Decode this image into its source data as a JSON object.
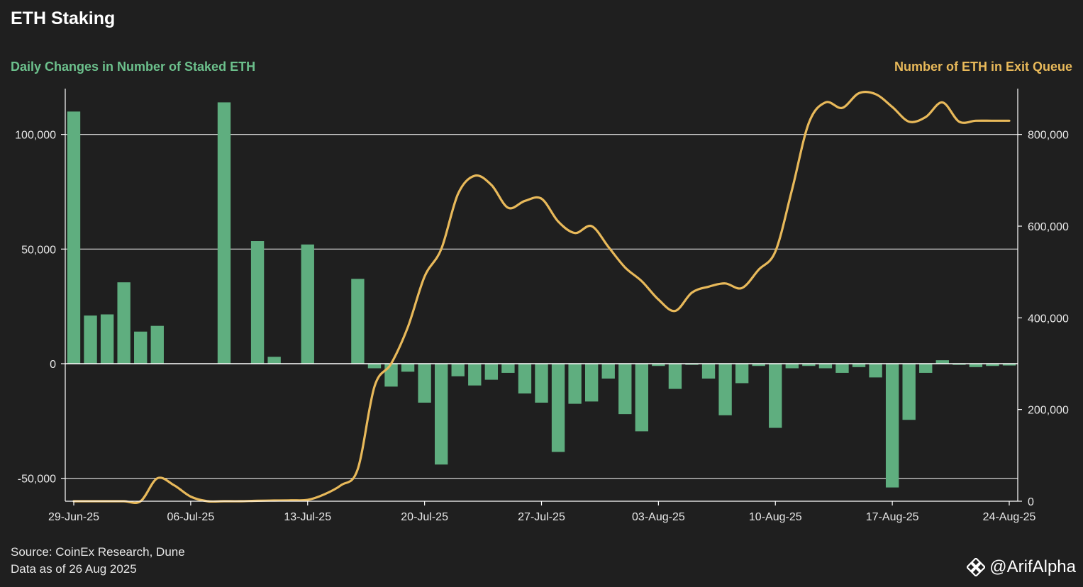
{
  "title": "ETH Staking",
  "source_lines": [
    "Source: CoinEx Research, Dune",
    "Data as of 26 Aug 2025"
  ],
  "watermark": {
    "text": "@ArifAlpha",
    "icon": "binance-logo-icon"
  },
  "colors": {
    "bar": "#5fae7f",
    "line": "#e8b95a",
    "left_title": "#6cc08c",
    "right_title": "#e8b95a",
    "background": "#1f1f1f"
  },
  "chart_data": {
    "type": "bar+line",
    "x_start": "2025-06-29",
    "x_ticks": [
      "29-Jun-25",
      "06-Jul-25",
      "13-Jul-25",
      "20-Jul-25",
      "27-Jul-25",
      "03-Aug-25",
      "10-Aug-25",
      "17-Aug-25",
      "24-Aug-25"
    ],
    "left_axis": {
      "title": "Daily Changes in Number of Staked ETH",
      "range": [
        -60000,
        120000
      ],
      "ticks": [
        -50000,
        0,
        50000,
        100000
      ],
      "tick_labels": [
        "-50,000",
        "0",
        "50,000",
        "100,000"
      ]
    },
    "right_axis": {
      "title": "Number of ETH in Exit Queue",
      "range": [
        0,
        900000
      ],
      "ticks": [
        0,
        200000,
        400000,
        600000,
        800000
      ],
      "tick_labels": [
        "0",
        "200,000",
        "400,000",
        "600,000",
        "800,000"
      ]
    },
    "bar_series": {
      "name": "Daily Changes in Number of Staked ETH",
      "dates": [
        "2025-06-29",
        "2025-06-30",
        "2025-07-01",
        "2025-07-02",
        "2025-07-03",
        "2025-07-04",
        "2025-07-05",
        "2025-07-06",
        "2025-07-07",
        "2025-07-08",
        "2025-07-09",
        "2025-07-10",
        "2025-07-11",
        "2025-07-12",
        "2025-07-13",
        "2025-07-14",
        "2025-07-15",
        "2025-07-16",
        "2025-07-17",
        "2025-07-18",
        "2025-07-19",
        "2025-07-20",
        "2025-07-21",
        "2025-07-22",
        "2025-07-23",
        "2025-07-24",
        "2025-07-25",
        "2025-07-26",
        "2025-07-27",
        "2025-07-28",
        "2025-07-29",
        "2025-07-30",
        "2025-07-31",
        "2025-08-01",
        "2025-08-02",
        "2025-08-03",
        "2025-08-04",
        "2025-08-05",
        "2025-08-06",
        "2025-08-07",
        "2025-08-08",
        "2025-08-09",
        "2025-08-10",
        "2025-08-11",
        "2025-08-12",
        "2025-08-13",
        "2025-08-14",
        "2025-08-15",
        "2025-08-16",
        "2025-08-17",
        "2025-08-18",
        "2025-08-19",
        "2025-08-20",
        "2025-08-21",
        "2025-08-22",
        "2025-08-23",
        "2025-08-24"
      ],
      "values": [
        110000,
        21000,
        21500,
        35500,
        14000,
        16500,
        0,
        0,
        0,
        114000,
        0,
        53500,
        3000,
        0,
        52000,
        0,
        0,
        37000,
        -2000,
        -10000,
        -3500,
        -17000,
        -44000,
        -5500,
        -9500,
        -7000,
        -4000,
        -13000,
        -17000,
        -38500,
        -17500,
        -16500,
        -6500,
        -22000,
        -29500,
        -1000,
        -11000,
        -500,
        -6500,
        -22500,
        -8500,
        -1000,
        -28000,
        -2000,
        -1000,
        -2000,
        -4000,
        -1500,
        -6000,
        -54000,
        -24500,
        -4000,
        1500,
        -500,
        -1500,
        -1000,
        -800
      ]
    },
    "line_series": {
      "name": "Number of ETH in Exit Queue",
      "dates": [
        "2025-06-29",
        "2025-06-30",
        "2025-07-01",
        "2025-07-02",
        "2025-07-03",
        "2025-07-04",
        "2025-07-05",
        "2025-07-06",
        "2025-07-07",
        "2025-07-08",
        "2025-07-09",
        "2025-07-10",
        "2025-07-11",
        "2025-07-12",
        "2025-07-13",
        "2025-07-14",
        "2025-07-15",
        "2025-07-16",
        "2025-07-17",
        "2025-07-18",
        "2025-07-19",
        "2025-07-20",
        "2025-07-21",
        "2025-07-22",
        "2025-07-23",
        "2025-07-24",
        "2025-07-25",
        "2025-07-26",
        "2025-07-27",
        "2025-07-28",
        "2025-07-29",
        "2025-07-30",
        "2025-07-31",
        "2025-08-01",
        "2025-08-02",
        "2025-08-03",
        "2025-08-04",
        "2025-08-05",
        "2025-08-06",
        "2025-08-07",
        "2025-08-08",
        "2025-08-09",
        "2025-08-10",
        "2025-08-11",
        "2025-08-12",
        "2025-08-13",
        "2025-08-14",
        "2025-08-15",
        "2025-08-16",
        "2025-08-17",
        "2025-08-18",
        "2025-08-19",
        "2025-08-20",
        "2025-08-21",
        "2025-08-22",
        "2025-08-23",
        "2025-08-24"
      ],
      "values": [
        0,
        0,
        0,
        0,
        0,
        50000,
        35000,
        10000,
        0,
        0,
        0,
        1000,
        1500,
        2000,
        3000,
        15000,
        35000,
        70000,
        250000,
        300000,
        380000,
        490000,
        550000,
        670000,
        710000,
        690000,
        640000,
        655000,
        660000,
        610000,
        585000,
        600000,
        555000,
        510000,
        480000,
        440000,
        415000,
        455000,
        468000,
        475000,
        465000,
        505000,
        545000,
        680000,
        825000,
        870000,
        858000,
        890000,
        888000,
        860000,
        828000,
        838000,
        870000,
        828000,
        830000,
        830000,
        830000
      ]
    }
  }
}
